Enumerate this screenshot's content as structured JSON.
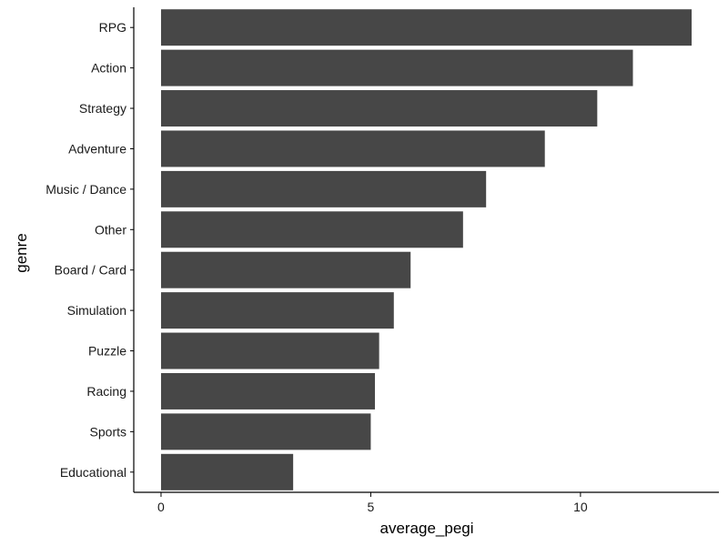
{
  "chart_data": {
    "type": "bar",
    "orientation": "horizontal",
    "categories": [
      "RPG",
      "Action",
      "Strategy",
      "Adventure",
      "Music / Dance",
      "Other",
      "Board / Card",
      "Simulation",
      "Puzzle",
      "Racing",
      "Sports",
      "Educational"
    ],
    "values": [
      12.65,
      11.25,
      10.4,
      9.15,
      7.75,
      7.2,
      5.95,
      5.55,
      5.2,
      5.1,
      5.0,
      3.15
    ],
    "xlabel": "average_pegi",
    "ylabel": "genre",
    "xlim": [
      -0.65,
      13.3
    ],
    "xticks": [
      0,
      5,
      10
    ],
    "xtick_labels": [
      "0",
      "5",
      "10"
    ],
    "grid": false,
    "bar_color": "#474747",
    "axis_color": "#000000"
  }
}
